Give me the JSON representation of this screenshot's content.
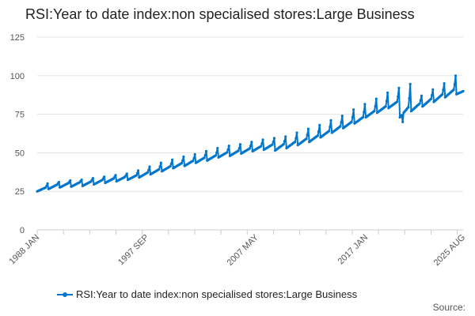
{
  "chart_data": {
    "type": "line",
    "title": "RSI:Year to date index:non specialised stores:Large Business",
    "xlabel": "",
    "ylabel": "",
    "ylim": [
      0,
      125
    ],
    "yticks": [
      0,
      25,
      50,
      75,
      100,
      125
    ],
    "xlim": [
      "1988 JAN",
      "2025 AUG"
    ],
    "xticks": [
      "1988 JAN",
      "1997 SEP",
      "2007 MAY",
      "2017 JAN",
      "2025 AUG"
    ],
    "grid": true,
    "legend_position": "bottom",
    "color": "#0077cc",
    "frequency": "monthly",
    "series": [
      {
        "name": "RSI:Year to date index:non specialised stores:Large Business",
        "annual_baseline": [
          {
            "year": 1988,
            "start": 25,
            "end": 28
          },
          {
            "year": 1989,
            "start": 26.5,
            "end": 30
          },
          {
            "year": 1990,
            "start": 27.5,
            "end": 31
          },
          {
            "year": 1991,
            "start": 28,
            "end": 31.5
          },
          {
            "year": 1992,
            "start": 28.5,
            "end": 32
          },
          {
            "year": 1993,
            "start": 29.5,
            "end": 33
          },
          {
            "year": 1994,
            "start": 30.5,
            "end": 34
          },
          {
            "year": 1995,
            "start": 31.5,
            "end": 35
          },
          {
            "year": 1996,
            "start": 32.5,
            "end": 36
          },
          {
            "year": 1997,
            "start": 34,
            "end": 38
          },
          {
            "year": 1998,
            "start": 36,
            "end": 40
          },
          {
            "year": 1999,
            "start": 38,
            "end": 42
          },
          {
            "year": 2000,
            "start": 40,
            "end": 44
          },
          {
            "year": 2001,
            "start": 41.5,
            "end": 45.5
          },
          {
            "year": 2002,
            "start": 43.5,
            "end": 47.5
          },
          {
            "year": 2003,
            "start": 45,
            "end": 49
          },
          {
            "year": 2004,
            "start": 47,
            "end": 51
          },
          {
            "year": 2005,
            "start": 48,
            "end": 52
          },
          {
            "year": 2006,
            "start": 49.5,
            "end": 53.5
          },
          {
            "year": 2007,
            "start": 51,
            "end": 55
          },
          {
            "year": 2008,
            "start": 52,
            "end": 56
          },
          {
            "year": 2009,
            "start": 51.5,
            "end": 56.5
          },
          {
            "year": 2010,
            "start": 53,
            "end": 58
          },
          {
            "year": 2011,
            "start": 55,
            "end": 60
          },
          {
            "year": 2012,
            "start": 57,
            "end": 62
          },
          {
            "year": 2013,
            "start": 60,
            "end": 65
          },
          {
            "year": 2014,
            "start": 63,
            "end": 68
          },
          {
            "year": 2015,
            "start": 66,
            "end": 71
          },
          {
            "year": 2016,
            "start": 69,
            "end": 74
          },
          {
            "year": 2017,
            "start": 73,
            "end": 78
          },
          {
            "year": 2018,
            "start": 76,
            "end": 81
          },
          {
            "year": 2019,
            "start": 79,
            "end": 84
          },
          {
            "year": 2020,
            "start": 73,
            "end": 81
          },
          {
            "year": 2021,
            "start": 77,
            "end": 83
          },
          {
            "year": 2022,
            "start": 80,
            "end": 86
          },
          {
            "year": 2023,
            "start": 83,
            "end": 89
          },
          {
            "year": 2024,
            "start": 86,
            "end": 92
          },
          {
            "year": 2025,
            "start": 88,
            "end": 91
          }
        ],
        "december_peaks": [
          30,
          31,
          32,
          32.5,
          33.5,
          34.5,
          35.5,
          36.5,
          38.5,
          41,
          43.5,
          45.5,
          47.5,
          49,
          51,
          53,
          54.5,
          55.5,
          57,
          58.5,
          59.5,
          60.5,
          63,
          65.5,
          68,
          71,
          74,
          78,
          81.5,
          85,
          89,
          92,
          94.5,
          87,
          91,
          95,
          100,
          98
        ],
        "dips": [
          {
            "date": "2020 APR",
            "value": 70
          }
        ]
      }
    ]
  },
  "footer": {
    "source_label": "Source:"
  }
}
